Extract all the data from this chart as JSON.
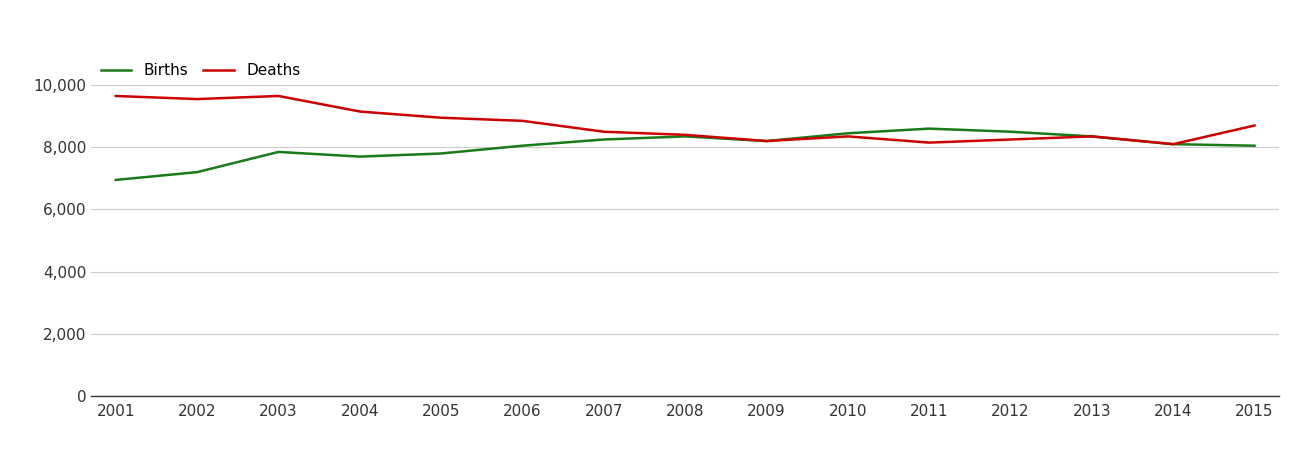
{
  "years": [
    2001,
    2002,
    2003,
    2004,
    2005,
    2006,
    2007,
    2008,
    2009,
    2010,
    2011,
    2012,
    2013,
    2014,
    2015
  ],
  "births": [
    6950,
    7200,
    7850,
    7700,
    7800,
    8050,
    8250,
    8350,
    8200,
    8450,
    8600,
    8500,
    8350,
    8100,
    8050
  ],
  "deaths": [
    9650,
    9550,
    9650,
    9150,
    8950,
    8850,
    8500,
    8400,
    8200,
    8350,
    8150,
    8250,
    8350,
    8100,
    8700
  ],
  "births_color": "#1a7a1a",
  "deaths_color": "#cc0000",
  "background_color": "#ffffff",
  "grid_color": "#cccccc",
  "legend_labels": [
    "Births",
    "Deaths"
  ],
  "ylim": [
    0,
    11000
  ],
  "yticks": [
    0,
    2000,
    4000,
    6000,
    8000,
    10000
  ],
  "line_width": 1.8,
  "legend_fontsize": 11,
  "tick_fontsize": 11
}
